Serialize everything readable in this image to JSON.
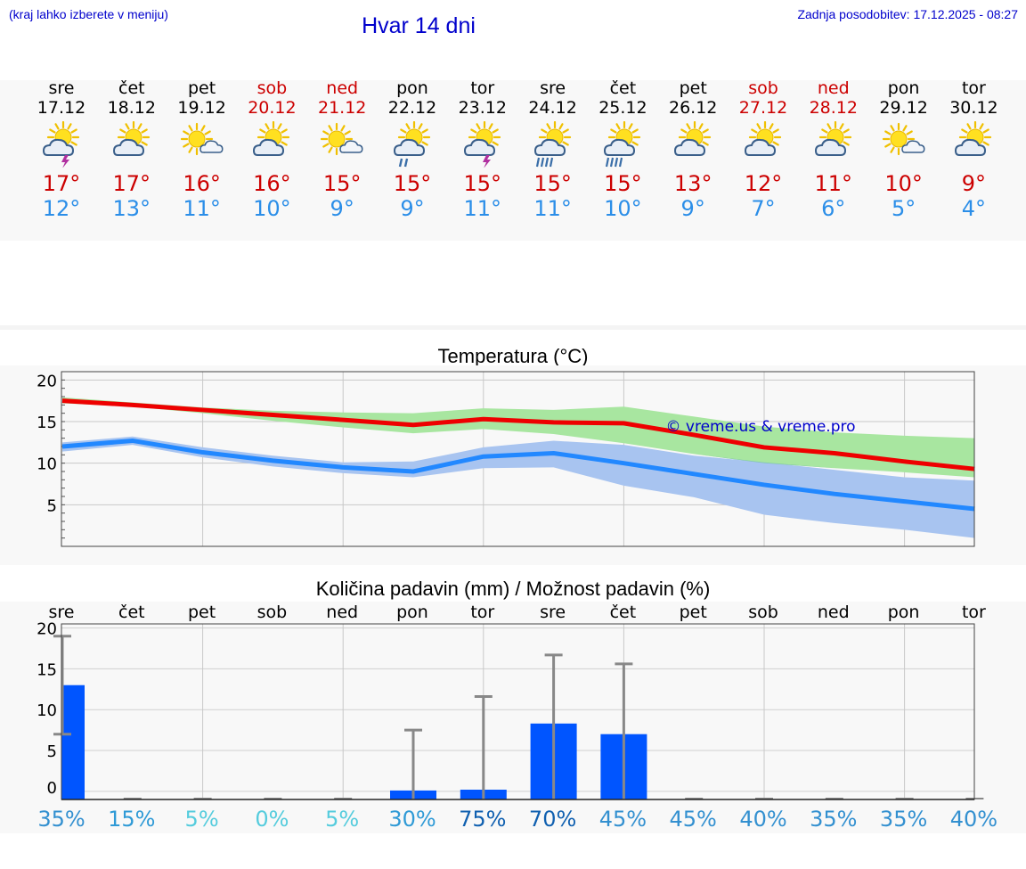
{
  "header": {
    "location_hint": "(kraj lahko izberete v meniju)",
    "title": "Hvar 14 dni",
    "last_update": "Zadnja posodobitev: 17.12.2025 - 08:27"
  },
  "days": [
    {
      "name": "sre",
      "date": "17.12",
      "icon": "sun-cloud-thunder-icon",
      "max": "17°",
      "min": "12°",
      "weekend": false
    },
    {
      "name": "čet",
      "date": "18.12",
      "icon": "sun-cloud-icon",
      "max": "17°",
      "min": "13°",
      "weekend": false
    },
    {
      "name": "pet",
      "date": "19.12",
      "icon": "sun-small-cloud-icon",
      "max": "16°",
      "min": "11°",
      "weekend": false
    },
    {
      "name": "sob",
      "date": "20.12",
      "icon": "sun-cloud-icon",
      "max": "16°",
      "min": "10°",
      "weekend": true
    },
    {
      "name": "ned",
      "date": "21.12",
      "icon": "sun-small-cloud-icon",
      "max": "15°",
      "min": "9°",
      "weekend": true
    },
    {
      "name": "pon",
      "date": "22.12",
      "icon": "sun-cloud-rain-icon",
      "max": "15°",
      "min": "9°",
      "weekend": false
    },
    {
      "name": "tor",
      "date": "23.12",
      "icon": "sun-cloud-thunder-icon",
      "max": "15°",
      "min": "11°",
      "weekend": false
    },
    {
      "name": "sre",
      "date": "24.12",
      "icon": "sun-cloud-heavy-rain-icon",
      "max": "15°",
      "min": "11°",
      "weekend": false
    },
    {
      "name": "čet",
      "date": "25.12",
      "icon": "sun-cloud-heavy-rain-icon",
      "max": "15°",
      "min": "10°",
      "weekend": false
    },
    {
      "name": "pet",
      "date": "26.12",
      "icon": "sun-cloud-icon",
      "max": "13°",
      "min": "9°",
      "weekend": false
    },
    {
      "name": "sob",
      "date": "27.12",
      "icon": "sun-cloud-icon",
      "max": "12°",
      "min": "7°",
      "weekend": true
    },
    {
      "name": "ned",
      "date": "28.12",
      "icon": "sun-cloud-icon",
      "max": "11°",
      "min": "6°",
      "weekend": true
    },
    {
      "name": "pon",
      "date": "29.12",
      "icon": "sun-small-cloud-icon",
      "max": "10°",
      "min": "5°",
      "weekend": false
    },
    {
      "name": "tor",
      "date": "30.12",
      "icon": "sun-cloud-icon",
      "max": "9°",
      "min": "4°",
      "weekend": false
    }
  ],
  "colors": {
    "max_temp": "#ee0000",
    "min_temp": "#2288ff",
    "max_band": "#a8e6a0",
    "min_band": "#a8c4f0",
    "overlap_band": "#7cc4a8",
    "precip_bar": "#0055ff",
    "error_bar": "#888888",
    "weekend_label": "#cc0000"
  },
  "chart_data": [
    {
      "type": "line",
      "title": "Temperatura (°C)",
      "watermark": "© vreme.us & vreme.pro",
      "ylim": [
        0,
        21
      ],
      "yticks": [
        5,
        10,
        15,
        20
      ],
      "x": [
        0,
        1,
        2,
        3,
        4,
        5,
        6,
        7,
        8,
        9,
        10,
        11,
        12,
        13
      ],
      "series": [
        {
          "name": "max",
          "values": [
            17.5,
            17.0,
            16.4,
            15.8,
            15.2,
            14.6,
            15.3,
            14.9,
            14.8,
            13.4,
            11.9,
            11.2,
            10.2,
            9.3
          ],
          "band_low": [
            17.2,
            16.8,
            16.0,
            15.1,
            14.3,
            13.6,
            14.1,
            13.5,
            12.4,
            11.1,
            10.0,
            9.4,
            8.9,
            8.3
          ],
          "band_high": [
            17.9,
            17.3,
            16.7,
            16.3,
            16.1,
            16.0,
            16.6,
            16.4,
            16.8,
            15.6,
            14.4,
            13.7,
            13.3,
            13.0
          ]
        },
        {
          "name": "min",
          "values": [
            12.0,
            12.7,
            11.3,
            10.3,
            9.5,
            9.0,
            10.8,
            11.2,
            10.0,
            8.7,
            7.4,
            6.3,
            5.4,
            4.5
          ],
          "band_low": [
            11.4,
            12.2,
            10.7,
            9.6,
            8.8,
            8.3,
            9.4,
            9.5,
            7.3,
            5.9,
            3.8,
            2.8,
            2.0,
            1.0
          ],
          "band_high": [
            12.5,
            13.2,
            11.9,
            10.9,
            10.1,
            10.2,
            11.9,
            12.7,
            12.2,
            10.9,
            10.1,
            9.2,
            8.3,
            7.9
          ]
        }
      ]
    },
    {
      "type": "bar",
      "title": "Količina padavin (mm) / Možnost padavin (%)",
      "ylim": [
        -1,
        20.5
      ],
      "yticks": [
        0,
        5,
        10,
        15,
        20
      ],
      "categories": [
        "sre",
        "čet",
        "pet",
        "sob",
        "ned",
        "pon",
        "tor",
        "sre",
        "čet",
        "pet",
        "sob",
        "ned",
        "pon",
        "tor"
      ],
      "values": [
        13.0,
        0,
        0,
        0,
        0,
        0.1,
        0.2,
        8.3,
        7.0,
        0,
        0,
        0,
        0,
        0
      ],
      "error_low": [
        7.0,
        0,
        0,
        0,
        0,
        0,
        0,
        0,
        0,
        0,
        0,
        0,
        0,
        0
      ],
      "error_high": [
        19.0,
        0,
        0,
        0,
        0,
        7.5,
        11.6,
        16.7,
        15.6,
        0,
        0,
        0,
        0,
        0
      ],
      "probability": [
        "35%",
        "15%",
        "5%",
        "0%",
        "5%",
        "30%",
        "75%",
        "70%",
        "45%",
        "45%",
        "40%",
        "35%",
        "35%",
        "40%"
      ],
      "probability_values": [
        35,
        15,
        5,
        0,
        5,
        30,
        75,
        70,
        45,
        45,
        40,
        35,
        35,
        40
      ]
    }
  ]
}
